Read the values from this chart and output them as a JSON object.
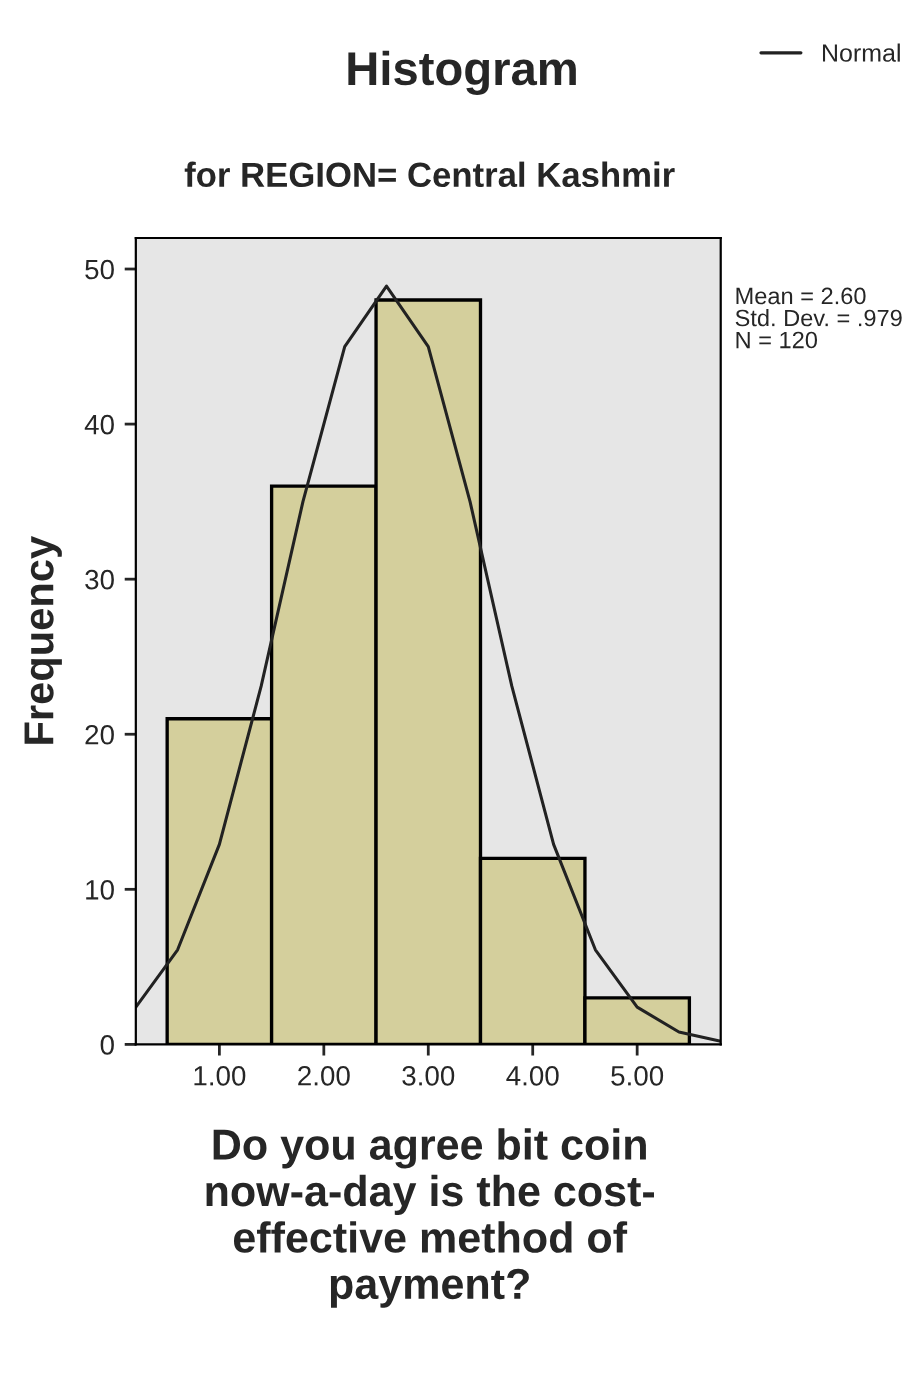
{
  "chart_data": {
    "type": "histogram",
    "title": "Histogram",
    "subtitle": "for REGION= Central Kashmir",
    "xlabel": "Do you agree bit coin\nnow-a-day is the cost-\neffective method of\npayment?",
    "ylabel": "Frequency",
    "bins": [
      0.5,
      1.5,
      2.5,
      3.5,
      4.5,
      5.5
    ],
    "values": [
      21,
      36,
      48,
      12,
      3
    ],
    "color": "#d4cf9c",
    "series": [
      {
        "name": "Normal",
        "type": "line",
        "color": "#222222",
        "x": [
          0.2,
          0.6,
          1.0,
          1.4,
          1.8,
          2.2,
          2.6,
          3.0,
          3.4,
          3.8,
          4.2,
          4.6,
          5.0,
          5.4,
          5.8
        ],
        "values": [
          2.4,
          6.1,
          12.9,
          23.1,
          35.0,
          45.0,
          48.9,
          45.0,
          35.0,
          23.1,
          12.9,
          6.1,
          2.4,
          0.8,
          0.2
        ]
      }
    ],
    "xlim": [
      0.2,
      5.8
    ],
    "xticks": [
      {
        "value": 1,
        "label": "1.00"
      },
      {
        "value": 2,
        "label": "2.00"
      },
      {
        "value": 3,
        "label": "3.00"
      },
      {
        "value": 4,
        "label": "4.00"
      },
      {
        "value": 5,
        "label": "5.00"
      }
    ],
    "ylim": [
      0,
      52
    ],
    "yticks": [
      0,
      10,
      20,
      30,
      40,
      50
    ],
    "annotations": [
      "Mean = 2.60\nStd. Dev. = .979\nN = 120"
    ],
    "legend": "top right",
    "grid": false
  }
}
